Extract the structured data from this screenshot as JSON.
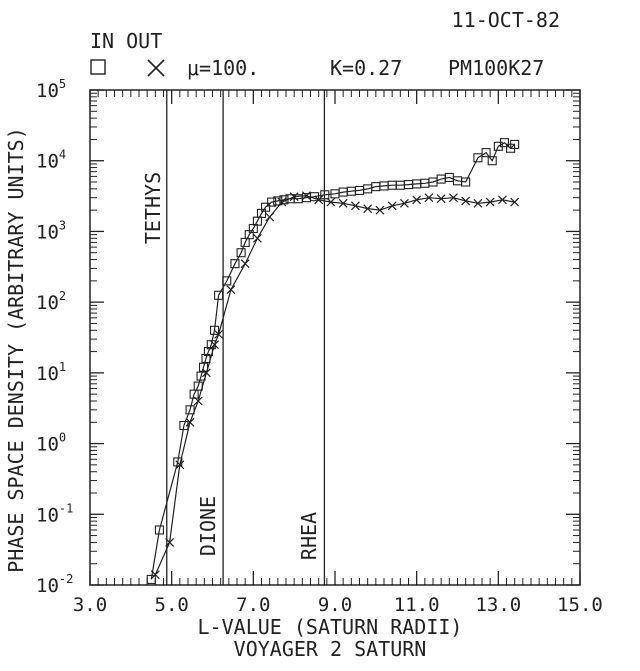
{
  "chart_data": {
    "type": "line",
    "header": {
      "date": "11-OCT-82",
      "in_out": "IN OUT",
      "mu": "μ=100.",
      "k": "K=0.27",
      "code": "PM100K27"
    },
    "xlabel": "L-VALUE (SATURN RADII)",
    "ylabel": "PHASE SPACE DENSITY (ARBITRARY UNITS)",
    "caption": "VOYAGER 2 SATURN",
    "xlim": [
      3.0,
      15.0
    ],
    "ylim_log10": [
      -2,
      5
    ],
    "y_scale": "log",
    "x_ticks": [
      "3.0",
      "5.0",
      "7.0",
      "9.0",
      "11.0",
      "13.0",
      "15.0"
    ],
    "y_ticks": [
      {
        "base": "10",
        "exp": "5"
      },
      {
        "base": "10",
        "exp": "4"
      },
      {
        "base": "10",
        "exp": "3"
      },
      {
        "base": "10",
        "exp": "2"
      },
      {
        "base": "10",
        "exp": "1"
      },
      {
        "base": "10",
        "exp": "0"
      },
      {
        "base": "10",
        "exp": "-1"
      },
      {
        "base": "10",
        "exp": "-2"
      }
    ],
    "moons": [
      {
        "name": "TETHYS",
        "L": 4.88
      },
      {
        "name": "DIONE",
        "L": 6.26
      },
      {
        "name": "RHEA",
        "L": 8.74
      }
    ],
    "series": [
      {
        "name": "IN",
        "marker": "square",
        "x": [
          4.5,
          4.7,
          5.15,
          5.3,
          5.45,
          5.55,
          5.65,
          5.72,
          5.78,
          5.84,
          5.9,
          5.97,
          6.05,
          6.15,
          6.35,
          6.55,
          6.7,
          6.8,
          6.9,
          7.0,
          7.1,
          7.2,
          7.3,
          7.45,
          7.6,
          7.75,
          7.9,
          8.1,
          8.3,
          8.5,
          8.75,
          9.0,
          9.2,
          9.4,
          9.6,
          9.8,
          10.0,
          10.2,
          10.4,
          10.6,
          10.8,
          11.0,
          11.2,
          11.4,
          11.6,
          11.8,
          12.0,
          12.2,
          12.5,
          12.7,
          12.85,
          13.0,
          13.15,
          13.3,
          13.4
        ],
        "y": [
          0.012,
          0.06,
          0.55,
          1.8,
          3.0,
          5.0,
          6.5,
          9.0,
          12.0,
          16.0,
          20.0,
          25.0,
          40.0,
          125.0,
          200.0,
          350.0,
          500.0,
          700.0,
          900.0,
          1100.0,
          1400.0,
          1800.0,
          2200.0,
          2600.0,
          2700.0,
          2800.0,
          2900.0,
          2900.0,
          3000.0,
          3100.0,
          3300.0,
          3400.0,
          3600.0,
          3700.0,
          3800.0,
          4000.0,
          4300.0,
          4400.0,
          4500.0,
          4500.0,
          4600.0,
          4700.0,
          4800.0,
          5000.0,
          5500.0,
          5800.0,
          5200.0,
          5000.0,
          11000.0,
          13000.0,
          10000.0,
          16000.0,
          18000.0,
          15000.0,
          17000.0
        ]
      },
      {
        "name": "OUT",
        "marker": "x",
        "x": [
          4.6,
          4.95,
          5.2,
          5.45,
          5.65,
          5.85,
          6.05,
          6.15,
          6.45,
          6.8,
          7.1,
          7.4,
          7.7,
          8.0,
          8.3,
          8.6,
          8.9,
          9.2,
          9.5,
          9.8,
          10.1,
          10.4,
          10.7,
          11.0,
          11.3,
          11.6,
          11.9,
          12.2,
          12.5,
          12.8,
          13.1,
          13.4
        ],
        "y": [
          0.014,
          0.04,
          0.5,
          2.0,
          4.0,
          10.0,
          25.0,
          35.0,
          150.0,
          350.0,
          800.0,
          1600.0,
          2600.0,
          3100.0,
          3200.0,
          2800.0,
          2600.0,
          2500.0,
          2300.0,
          2100.0,
          2000.0,
          2300.0,
          2500.0,
          2800.0,
          3000.0,
          2900.0,
          3000.0,
          2700.0,
          2500.0,
          2600.0,
          2800.0,
          2600.0
        ]
      }
    ]
  }
}
